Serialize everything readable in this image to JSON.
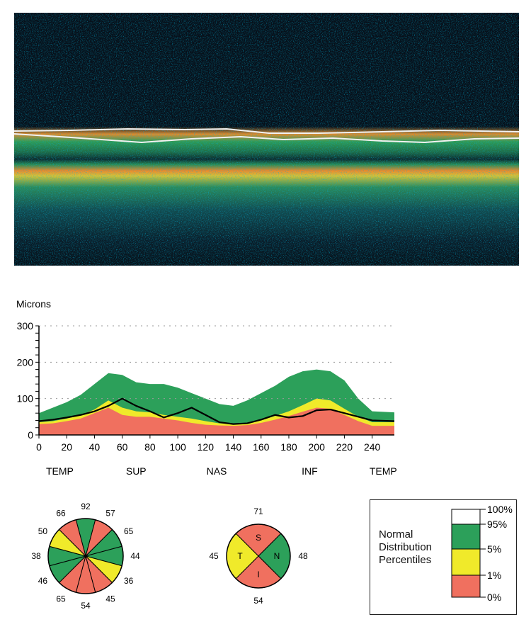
{
  "colors": {
    "above95": "#ffffff",
    "normal": "#2ca05a",
    "borderline": "#f0ea2a",
    "outside": "#f0705f",
    "scan_bg": "#050a12"
  },
  "scan": {
    "description_icon": "oct-scan-image"
  },
  "chart_data": [
    {
      "type": "area",
      "ylabel": "Microns",
      "ylim": [
        0,
        300
      ],
      "xlim": [
        0,
        256
      ],
      "y_ticks": [
        0,
        100,
        200,
        300
      ],
      "x_ticks": [
        0,
        20,
        40,
        60,
        80,
        100,
        120,
        140,
        160,
        180,
        200,
        220,
        240
      ],
      "grid": "dotted horizontal",
      "region_labels": [
        {
          "text": "TEMP",
          "x": 15
        },
        {
          "text": "SUP",
          "x": 70
        },
        {
          "text": "NAS",
          "x": 128
        },
        {
          "text": "INF",
          "x": 195
        },
        {
          "text": "TEMP",
          "x": 248
        }
      ],
      "x": [
        0,
        10,
        20,
        30,
        40,
        50,
        60,
        70,
        80,
        90,
        100,
        110,
        120,
        130,
        140,
        150,
        160,
        170,
        180,
        190,
        200,
        210,
        220,
        230,
        240,
        256
      ],
      "bands": [
        {
          "name": "1%",
          "values": [
            30,
            32,
            38,
            45,
            60,
            75,
            55,
            50,
            50,
            45,
            40,
            33,
            28,
            26,
            25,
            27,
            33,
            42,
            52,
            64,
            75,
            72,
            55,
            38,
            25,
            25
          ]
        },
        {
          "name": "5%",
          "values": [
            35,
            38,
            45,
            55,
            70,
            95,
            75,
            65,
            62,
            55,
            50,
            45,
            38,
            32,
            30,
            33,
            40,
            52,
            65,
            82,
            100,
            95,
            72,
            50,
            35,
            35
          ]
        },
        {
          "name": "95%",
          "values": [
            60,
            75,
            90,
            110,
            140,
            170,
            165,
            145,
            140,
            140,
            130,
            115,
            100,
            85,
            80,
            95,
            115,
            135,
            160,
            175,
            180,
            175,
            150,
            100,
            65,
            62
          ]
        }
      ],
      "series": [
        {
          "values": [
            38,
            42,
            48,
            55,
            65,
            80,
            100,
            80,
            65,
            48,
            60,
            75,
            55,
            35,
            30,
            32,
            42,
            55,
            48,
            52,
            68,
            70,
            60,
            50,
            40,
            38
          ]
        }
      ]
    },
    {
      "type": "pie",
      "slice_values": [
        92,
        57,
        65,
        44,
        36,
        45,
        54,
        65,
        46,
        38,
        50,
        66
      ],
      "slice_colors": [
        "normal",
        "outside",
        "normal",
        "normal",
        "borderline",
        "outside",
        "outside",
        "outside",
        "normal",
        "normal",
        "borderline",
        "outside"
      ]
    },
    {
      "type": "pie",
      "quadrants": [
        {
          "label": "S",
          "value": 71,
          "color": "outside"
        },
        {
          "label": "N",
          "value": 48,
          "color": "normal"
        },
        {
          "label": "I",
          "value": 54,
          "color": "outside"
        },
        {
          "label": "T",
          "value": 45,
          "color": "borderline"
        }
      ]
    }
  ],
  "legend": {
    "title_lines": [
      "Normal",
      "Distribution",
      "Percentiles"
    ],
    "tick_labels": [
      "100%",
      "95%",
      "5%",
      "1%",
      "0%"
    ]
  }
}
